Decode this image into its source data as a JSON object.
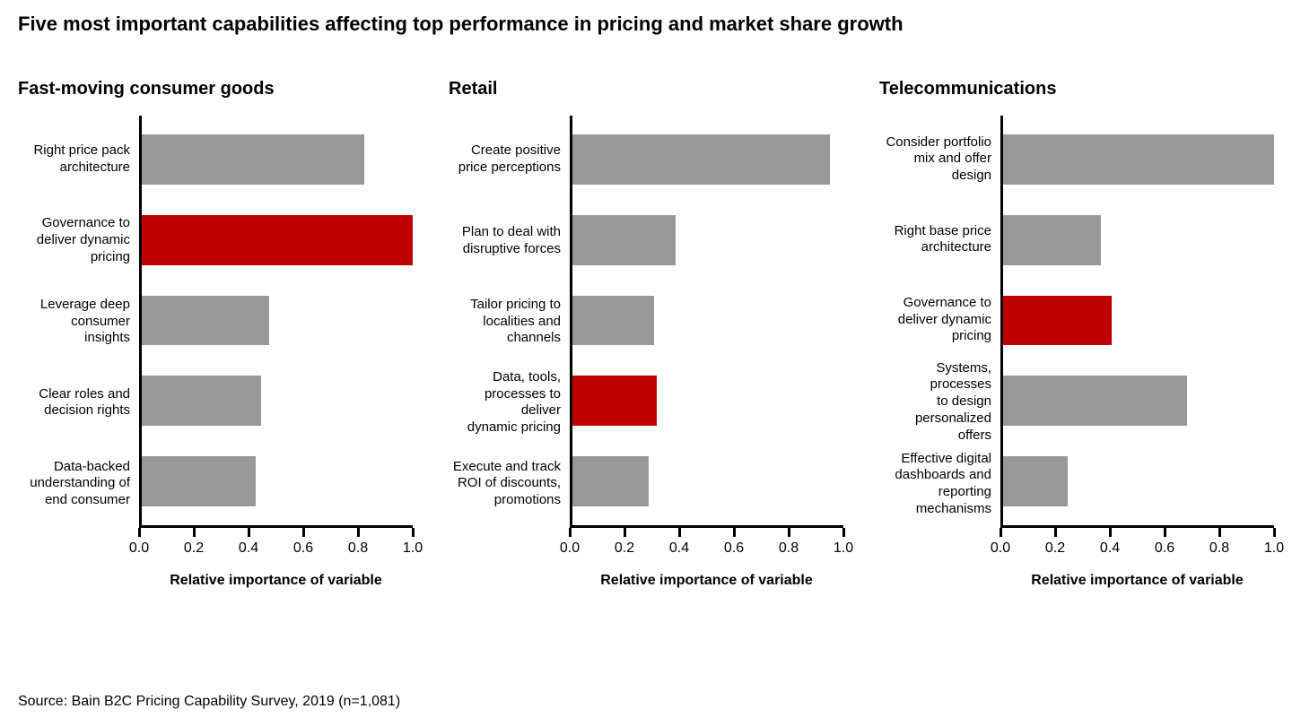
{
  "title": "Five most important capabilities affecting top performance in pricing and market share growth",
  "source": "Source: Bain B2C Pricing Capability Survey, 2019 (n=1,081)",
  "axis": {
    "xlabel": "Relative importance of variable",
    "xlim": [
      0.0,
      1.0
    ],
    "ticks": [
      0.0,
      0.2,
      0.4,
      0.6,
      0.8,
      1.0
    ],
    "tick_labels": [
      "0.0",
      "0.2",
      "0.4",
      "0.6",
      "0.8",
      "1.0"
    ]
  },
  "colors": {
    "bar_default": "#989898",
    "bar_highlight": "#c00000",
    "axis": "#000000",
    "background": "#ffffff"
  },
  "typography": {
    "title_fontsize": 22,
    "panel_title_fontsize": 20,
    "label_fontsize": 15,
    "tick_fontsize": 16,
    "xlabel_fontsize": 16,
    "source_fontsize": 16
  },
  "panels": [
    {
      "title": "Fast-moving consumer goods",
      "type": "bar-horizontal",
      "bars": [
        {
          "label": "Right price pack\narchitecture",
          "value": 0.82,
          "color": "#989898"
        },
        {
          "label": "Governance to\ndeliver dynamic\npricing",
          "value": 1.0,
          "color": "#c00000"
        },
        {
          "label": "Leverage deep\nconsumer\ninsights",
          "value": 0.47,
          "color": "#989898"
        },
        {
          "label": "Clear roles and\ndecision rights",
          "value": 0.44,
          "color": "#989898"
        },
        {
          "label": "Data-backed\nunderstanding of\nend consumer",
          "value": 0.42,
          "color": "#989898"
        }
      ]
    },
    {
      "title": "Retail",
      "type": "bar-horizontal",
      "bars": [
        {
          "label": "Create positive\nprice perceptions",
          "value": 0.95,
          "color": "#989898"
        },
        {
          "label": "Plan to deal with\ndisruptive forces",
          "value": 0.38,
          "color": "#989898"
        },
        {
          "label": "Tailor pricing to\nlocalities and\nchannels",
          "value": 0.3,
          "color": "#989898"
        },
        {
          "label": "Data, tools,\nprocesses to deliver\ndynamic pricing",
          "value": 0.31,
          "color": "#c00000"
        },
        {
          "label": "Execute and track\nROI of discounts,\npromotions",
          "value": 0.28,
          "color": "#989898"
        }
      ]
    },
    {
      "title": "Telecommunications",
      "type": "bar-horizontal",
      "bars": [
        {
          "label": "Consider portfolio\nmix and offer design",
          "value": 1.0,
          "color": "#989898"
        },
        {
          "label": "Right base price\narchitecture",
          "value": 0.36,
          "color": "#989898"
        },
        {
          "label": "Governance to\ndeliver dynamic\npricing",
          "value": 0.4,
          "color": "#c00000"
        },
        {
          "label": "Systems, processes\nto design\npersonalized offers",
          "value": 0.68,
          "color": "#989898"
        },
        {
          "label": "Effective digital\ndashboards and\nreporting mechanisms",
          "value": 0.24,
          "color": "#989898"
        }
      ]
    }
  ]
}
